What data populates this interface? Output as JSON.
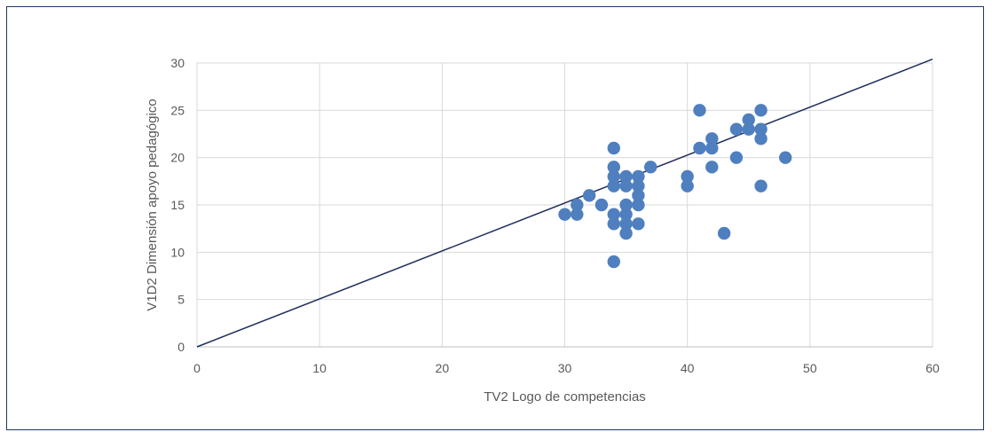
{
  "chart_data": {
    "type": "scatter",
    "title": "",
    "xlabel": "TV2 Logo de competencias",
    "ylabel": "V1D2 Dimensión apoyo pedagógico",
    "xlim": [
      0,
      60
    ],
    "ylim": [
      0,
      30
    ],
    "x_ticks": [
      "0",
      "10",
      "20",
      "30",
      "40",
      "50",
      "60"
    ],
    "y_ticks": [
      "0",
      "5",
      "10",
      "15",
      "20",
      "25",
      "30"
    ],
    "grid": true,
    "legend": "none",
    "point_color": "#4f7fbf",
    "line_color": "#1f2d5c",
    "points": [
      [
        30,
        14
      ],
      [
        31,
        14
      ],
      [
        31,
        15
      ],
      [
        32,
        16
      ],
      [
        33,
        15
      ],
      [
        34,
        9
      ],
      [
        34,
        13
      ],
      [
        34,
        14
      ],
      [
        34,
        17
      ],
      [
        34,
        18
      ],
      [
        34,
        19
      ],
      [
        34,
        21
      ],
      [
        35,
        12
      ],
      [
        35,
        13
      ],
      [
        35,
        14
      ],
      [
        35,
        15
      ],
      [
        35,
        17
      ],
      [
        35,
        18
      ],
      [
        36,
        13
      ],
      [
        36,
        15
      ],
      [
        36,
        16
      ],
      [
        36,
        17
      ],
      [
        36,
        18
      ],
      [
        37,
        19
      ],
      [
        40,
        17
      ],
      [
        40,
        18
      ],
      [
        41,
        21
      ],
      [
        41,
        25
      ],
      [
        42,
        19
      ],
      [
        42,
        21
      ],
      [
        42,
        22
      ],
      [
        43,
        12
      ],
      [
        44,
        20
      ],
      [
        44,
        23
      ],
      [
        45,
        23
      ],
      [
        45,
        24
      ],
      [
        46,
        17
      ],
      [
        46,
        22
      ],
      [
        46,
        23
      ],
      [
        46,
        25
      ],
      [
        48,
        20
      ]
    ],
    "trendline": {
      "x": [
        0,
        60
      ],
      "y": [
        0,
        30.4
      ]
    }
  }
}
